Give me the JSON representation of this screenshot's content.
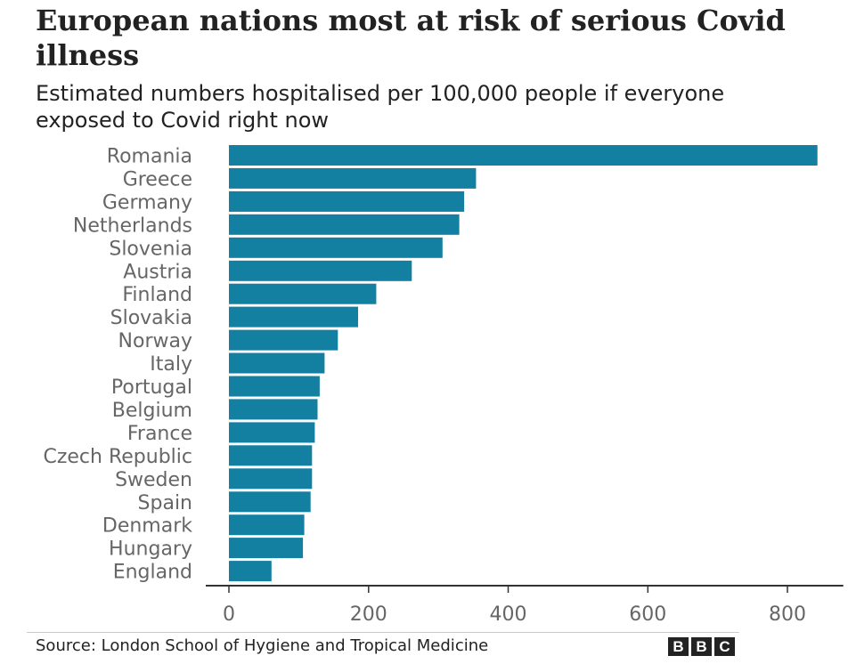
{
  "chart_data": {
    "type": "bar",
    "orientation": "horizontal",
    "title": "European nations most at risk of serious Covid illness",
    "subtitle": "Estimated numbers hospitalised per 100,000 people if everyone exposed to Covid right now",
    "categories": [
      "Romania",
      "Greece",
      "Germany",
      "Netherlands",
      "Slovenia",
      "Austria",
      "Finland",
      "Slovakia",
      "Norway",
      "Italy",
      "Portugal",
      "Belgium",
      "France",
      "Czech Republic",
      "Sweden",
      "Spain",
      "Denmark",
      "Hungary",
      "England"
    ],
    "values": [
      843,
      354,
      337,
      330,
      306,
      262,
      211,
      185,
      156,
      137,
      130,
      127,
      123,
      119,
      119,
      117,
      108,
      106,
      61
    ],
    "xlabel": "",
    "ylabel": "",
    "xlim": [
      0,
      880
    ],
    "xticks": [
      0,
      200,
      400,
      600,
      800
    ],
    "grid": false,
    "bar_color": "#1380a1"
  },
  "footer": {
    "source": "Source: London School of Hygiene and Tropical Medicine",
    "logo_letters": [
      "B",
      "B",
      "C"
    ]
  }
}
